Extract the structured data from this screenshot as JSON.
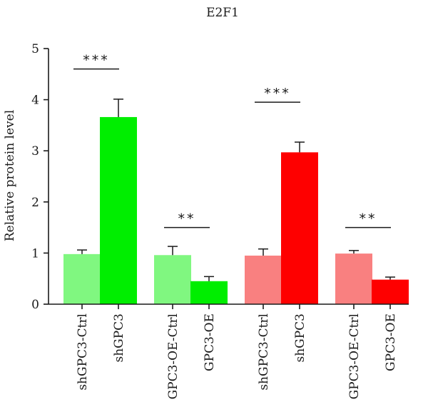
{
  "chart_data": {
    "type": "bar",
    "title": "E2F1",
    "ylabel": "Relative protein level",
    "xlabel": "",
    "ylim": [
      0,
      5
    ],
    "yticks": [
      0,
      1,
      2,
      3,
      4,
      5
    ],
    "categories": [
      "shGPC3-Ctrl",
      "shGPC3",
      "GPC3-OE-Ctrl",
      "GPC3-OE",
      "shGPC3-Ctrl",
      "shGPC3",
      "GPC3-OE-Ctrl",
      "GPC3-OE"
    ],
    "values": [
      0.98,
      3.66,
      0.96,
      0.45,
      0.95,
      2.97,
      0.99,
      0.48
    ],
    "errors": [
      0.08,
      0.35,
      0.17,
      0.09,
      0.13,
      0.2,
      0.06,
      0.05
    ],
    "colors": [
      "#80f780",
      "#00ee00",
      "#80f780",
      "#00ee00",
      "#f98080",
      "#fe0000",
      "#f98080",
      "#fe0000"
    ],
    "significance": [
      {
        "from": 0,
        "to": 1,
        "label": "***",
        "y": 4.6
      },
      {
        "from": 2,
        "to": 3,
        "label": "**",
        "y": 1.5
      },
      {
        "from": 4,
        "to": 5,
        "label": "***",
        "y": 3.95
      },
      {
        "from": 6,
        "to": 7,
        "label": "**",
        "y": 1.5
      }
    ],
    "grid": false,
    "legend": "none"
  }
}
